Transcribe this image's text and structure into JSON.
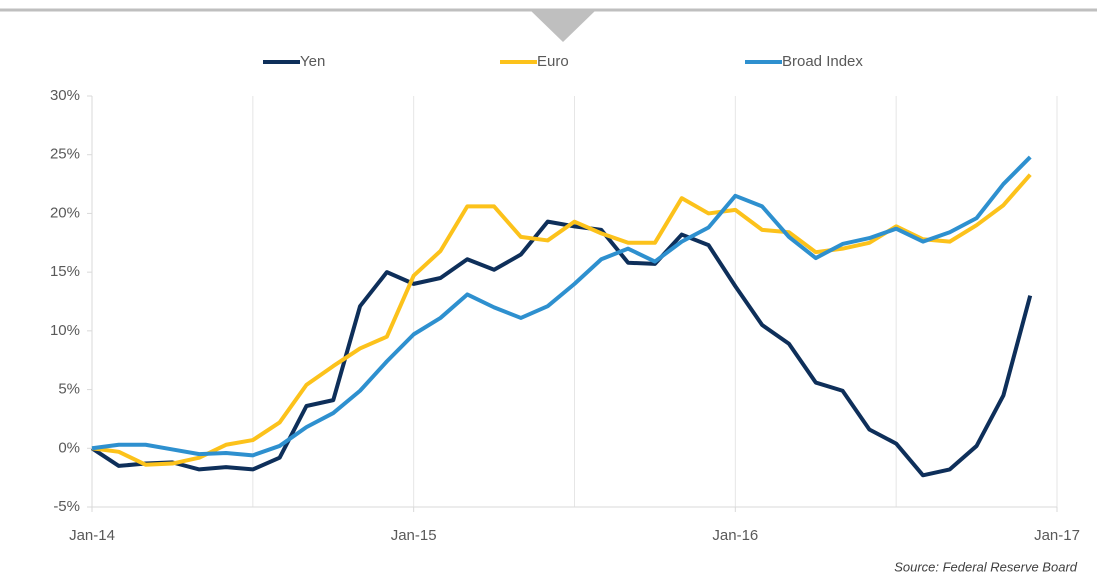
{
  "chart_data": {
    "type": "line",
    "x": [
      0,
      1,
      2,
      3,
      4,
      5,
      6,
      7,
      8,
      9,
      10,
      11,
      12,
      13,
      14,
      15,
      16,
      17,
      18,
      19,
      20,
      21,
      22,
      23,
      24,
      25,
      26,
      27,
      28,
      29,
      30,
      31,
      32,
      33,
      34,
      35
    ],
    "xlim": [
      0,
      36
    ],
    "xticks": [
      {
        "value": 0,
        "label": "Jan-14"
      },
      {
        "value": 12,
        "label": "Jan-15"
      },
      {
        "value": 24,
        "label": "Jan-16"
      },
      {
        "value": 36,
        "label": "Jan-17"
      }
    ],
    "ylim": [
      -5,
      30
    ],
    "yticks": [
      {
        "value": -5,
        "label": "-5%"
      },
      {
        "value": 0,
        "label": "0%"
      },
      {
        "value": 5,
        "label": "5%"
      },
      {
        "value": 10,
        "label": "10%"
      },
      {
        "value": 15,
        "label": "15%"
      },
      {
        "value": 20,
        "label": "20%"
      },
      {
        "value": 25,
        "label": "25%"
      },
      {
        "value": 30,
        "label": "30%"
      }
    ],
    "grid": true,
    "legend": "top",
    "series": [
      {
        "name": "Yen",
        "color": "#0e2f5a",
        "values": [
          0,
          -1.5,
          -1.3,
          -1.2,
          -1.8,
          -1.6,
          -1.8,
          -0.8,
          3.6,
          4.1,
          12.1,
          15.0,
          14.0,
          14.5,
          16.1,
          15.2,
          16.5,
          19.3,
          18.9,
          18.6,
          15.8,
          15.7,
          18.2,
          17.3,
          13.8,
          10.5,
          8.9,
          5.6,
          4.9,
          1.6,
          0.4,
          -2.3,
          -1.8,
          0.2,
          4.5,
          13.0
        ]
      },
      {
        "name": "Euro",
        "color": "#fcc21b",
        "values": [
          0,
          -0.3,
          -1.4,
          -1.3,
          -0.8,
          0.3,
          0.7,
          2.2,
          5.4,
          7.0,
          8.5,
          9.5,
          14.7,
          16.8,
          20.6,
          20.6,
          18.0,
          17.7,
          19.3,
          18.3,
          17.5,
          17.5,
          21.3,
          20.0,
          20.3,
          18.6,
          18.4,
          16.7,
          17.0,
          17.5,
          18.9,
          17.8,
          17.6,
          19.0,
          20.7,
          23.3
        ]
      },
      {
        "name": "Broad Index",
        "color": "#2e90cf",
        "values": [
          0,
          0.3,
          0.3,
          -0.1,
          -0.5,
          -0.4,
          -0.6,
          0.2,
          1.8,
          3.0,
          4.9,
          7.4,
          9.7,
          11.1,
          13.1,
          12.0,
          11.1,
          12.1,
          14.0,
          16.1,
          17.0,
          15.9,
          17.6,
          18.8,
          21.5,
          20.6,
          18.0,
          16.2,
          17.4,
          17.9,
          18.7,
          17.6,
          18.4,
          19.6,
          22.5,
          24.8
        ]
      }
    ],
    "source": "Source: Federal Reserve Board"
  }
}
